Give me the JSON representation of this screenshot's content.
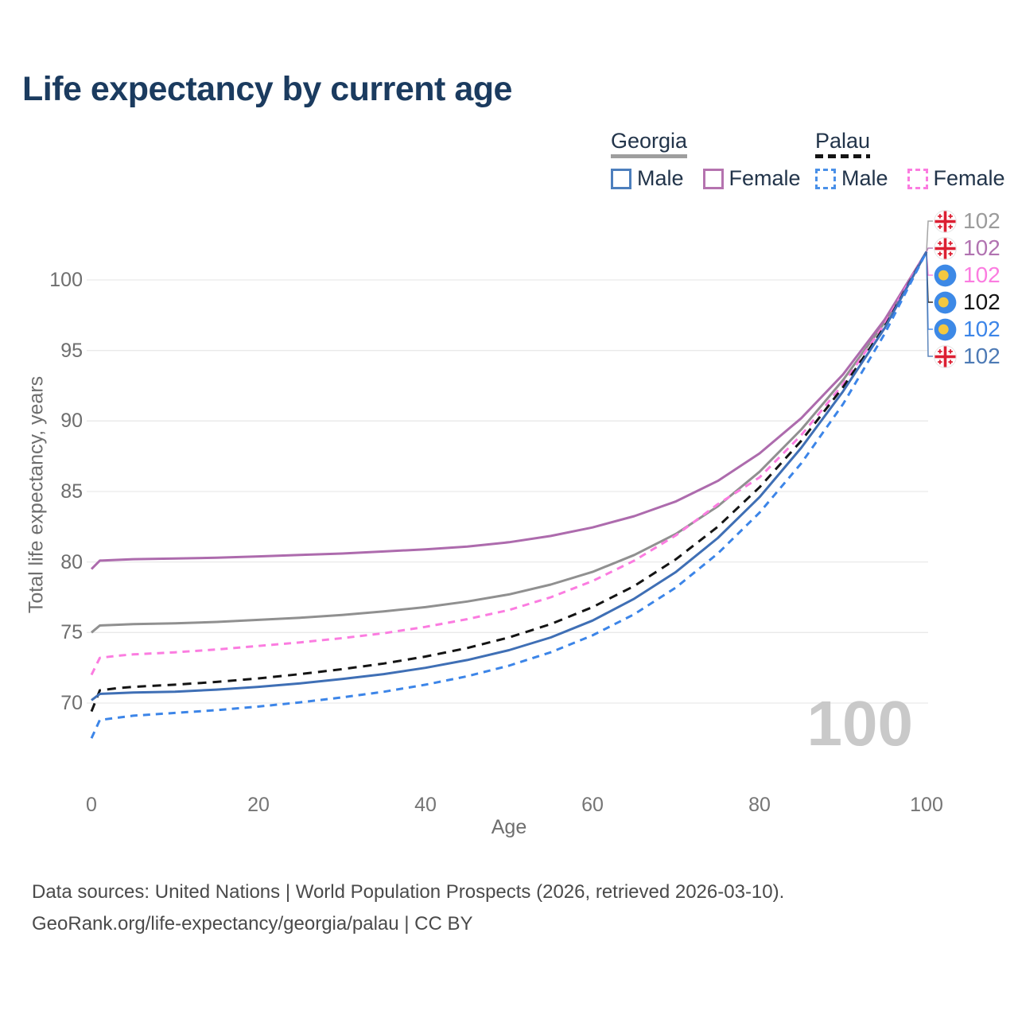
{
  "title": "Life expectancy by current age",
  "legend": {
    "groups": [
      {
        "country": "Georgia",
        "line_style": "solid",
        "underline_color": "#9e9e9e",
        "items": [
          {
            "label": "Male",
            "color": "#4d7fbd",
            "dashed": false
          },
          {
            "label": "Female",
            "color": "#b573af",
            "dashed": false
          }
        ]
      },
      {
        "country": "Palau",
        "line_style": "dashed",
        "underline_color": "#141414",
        "items": [
          {
            "label": "Male",
            "color": "#4a90e8",
            "dashed": true
          },
          {
            "label": "Female",
            "color": "#fb7ce0",
            "dashed": true
          }
        ]
      }
    ]
  },
  "y_axis": {
    "title": "Total life expectancy, years",
    "ticks": [
      "100",
      "95",
      "90",
      "85",
      "80",
      "75",
      "70"
    ]
  },
  "x_axis": {
    "title": "Age",
    "ticks": [
      "0",
      "20",
      "40",
      "60",
      "80",
      "100"
    ]
  },
  "age_counter": "100",
  "end_labels": [
    {
      "icon": "georgia-flag-icon",
      "value": "102",
      "color": "#9b9b9b",
      "series": "Georgia (both sexes)"
    },
    {
      "icon": "georgia-flag-icon",
      "value": "102",
      "color": "#b173b1",
      "series": "Georgia Female"
    },
    {
      "icon": "palau-flag-icon",
      "value": "102",
      "color": "#fb7ce0",
      "series": "Palau Female"
    },
    {
      "icon": "palau-flag-icon",
      "value": "102",
      "color": "#141414",
      "series": "Palau (both sexes)"
    },
    {
      "icon": "palau-flag-icon",
      "value": "102",
      "color": "#3c85e8",
      "series": "Palau Male"
    },
    {
      "icon": "georgia-flag-icon",
      "value": "102",
      "color": "#4d7ab5",
      "series": "Georgia Male"
    }
  ],
  "footer": {
    "line1": "Data sources: United Nations | World Population Prospects (2026, retrieved 2026-03-10).",
    "line2": "GeoRank.org/life-expectancy/georgia/palau | CC BY"
  },
  "chart_data": {
    "type": "line",
    "title": "Life expectancy by current age",
    "xlabel": "Age",
    "ylabel": "Total life expectancy, years",
    "xlim": [
      0,
      100
    ],
    "ylim": [
      66.5,
      103.5
    ],
    "x_ticks": [
      0,
      20,
      40,
      60,
      80,
      100
    ],
    "y_ticks": [
      70,
      75,
      80,
      85,
      90,
      95,
      100
    ],
    "grid": "horizontal",
    "legend_position": "top-right",
    "ages": [
      0,
      1,
      3,
      5,
      10,
      15,
      20,
      25,
      30,
      35,
      40,
      45,
      50,
      55,
      60,
      65,
      70,
      75,
      80,
      85,
      90,
      95,
      100
    ],
    "series": [
      {
        "name": "Georgia (both sexes)",
        "country": "Georgia",
        "sex": "all",
        "style": "solid",
        "color": "#909090",
        "end_value": 102,
        "values": [
          75.0,
          75.5,
          75.55,
          75.6,
          75.65,
          75.75,
          75.9,
          76.05,
          76.25,
          76.5,
          76.8,
          77.2,
          77.7,
          78.4,
          79.3,
          80.5,
          82.0,
          83.95,
          86.4,
          89.4,
          92.9,
          97.0,
          102
        ]
      },
      {
        "name": "Georgia Female",
        "country": "Georgia",
        "sex": "female",
        "style": "solid",
        "color": "#ad6bad",
        "end_value": 102,
        "values": [
          79.5,
          80.1,
          80.15,
          80.2,
          80.25,
          80.3,
          80.4,
          80.5,
          80.6,
          80.75,
          80.9,
          81.1,
          81.4,
          81.85,
          82.45,
          83.25,
          84.3,
          85.75,
          87.7,
          90.2,
          93.3,
          97.2,
          102
        ]
      },
      {
        "name": "Palau Female",
        "country": "Palau",
        "sex": "female",
        "style": "dashed",
        "color": "#fb7ce0",
        "end_value": 102,
        "values": [
          72.0,
          73.2,
          73.35,
          73.45,
          73.6,
          73.8,
          74.05,
          74.3,
          74.6,
          74.95,
          75.4,
          75.95,
          76.6,
          77.5,
          78.65,
          80.1,
          81.9,
          84.1,
          86.0,
          89.0,
          92.6,
          96.9,
          102
        ]
      },
      {
        "name": "Palau (both sexes)",
        "country": "Palau",
        "sex": "all",
        "style": "dashed",
        "color": "#141414",
        "end_value": 102,
        "values": [
          69.4,
          70.9,
          71.05,
          71.15,
          71.3,
          71.5,
          71.75,
          72.05,
          72.4,
          72.8,
          73.3,
          73.9,
          74.65,
          75.6,
          76.8,
          78.3,
          80.2,
          82.5,
          85.3,
          88.6,
          92.4,
          96.7,
          102
        ]
      },
      {
        "name": "Georgia Male",
        "country": "Georgia",
        "sex": "male",
        "style": "solid",
        "color": "#3f6fb5",
        "end_value": 102,
        "values": [
          70.2,
          70.65,
          70.7,
          70.75,
          70.8,
          70.95,
          71.15,
          71.4,
          71.7,
          72.05,
          72.5,
          73.05,
          73.75,
          74.65,
          75.85,
          77.4,
          79.3,
          81.7,
          84.6,
          88.1,
          92.1,
          96.6,
          102
        ]
      },
      {
        "name": "Palau Male",
        "country": "Palau",
        "sex": "male",
        "style": "dashed",
        "color": "#3c85e8",
        "end_value": 102,
        "values": [
          67.5,
          68.8,
          68.95,
          69.1,
          69.3,
          69.5,
          69.75,
          70.05,
          70.4,
          70.8,
          71.3,
          71.9,
          72.65,
          73.6,
          74.8,
          76.3,
          78.2,
          80.6,
          83.5,
          87.0,
          91.2,
          96.2,
          102
        ]
      }
    ]
  }
}
